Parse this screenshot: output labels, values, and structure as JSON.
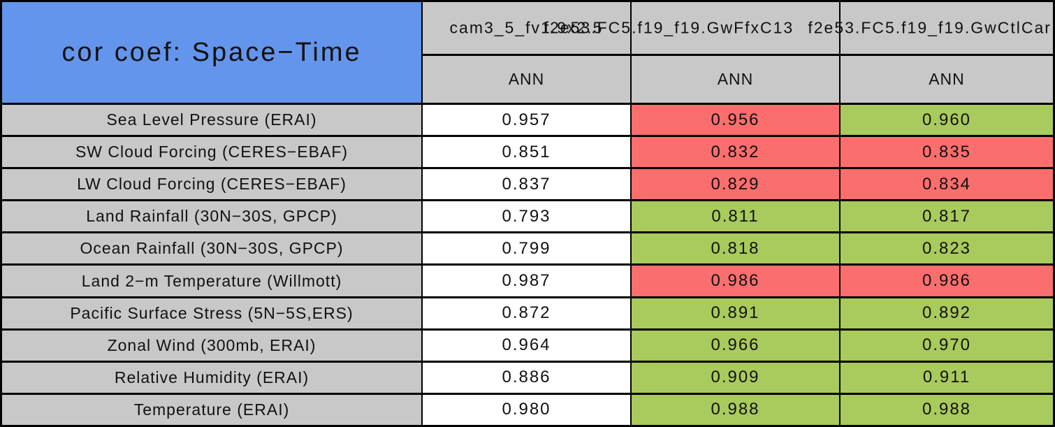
{
  "colors": {
    "title_bg": "#6495ec",
    "header_bg": "#c8c8c8",
    "red": "#fb6e6e",
    "green": "#a9ca5c",
    "white": "#ffffff",
    "border": "#000000"
  },
  "chart_data": {
    "type": "table",
    "title": "cor coef: Space−Time",
    "columns": [
      "cam3_5_fv1.9x2.5",
      "f2e53.FC5.f19_f19.GwFfxC13",
      "f2e53.FC5.f19_f19.GwCtlCar"
    ],
    "season_headers": [
      "ANN",
      "ANN",
      "ANN"
    ],
    "rows": [
      {
        "label": "Sea Level Pressure (ERAI)",
        "values": [
          "0.957",
          "0.956",
          "0.960"
        ],
        "cell_colors": [
          "white",
          "red",
          "green"
        ]
      },
      {
        "label": "SW Cloud Forcing (CERES−EBAF)",
        "values": [
          "0.851",
          "0.832",
          "0.835"
        ],
        "cell_colors": [
          "white",
          "red",
          "red"
        ]
      },
      {
        "label": "LW Cloud Forcing (CERES−EBAF)",
        "values": [
          "0.837",
          "0.829",
          "0.834"
        ],
        "cell_colors": [
          "white",
          "red",
          "red"
        ]
      },
      {
        "label": "Land Rainfall (30N−30S, GPCP)",
        "values": [
          "0.793",
          "0.811",
          "0.817"
        ],
        "cell_colors": [
          "white",
          "green",
          "green"
        ]
      },
      {
        "label": "Ocean Rainfall (30N−30S, GPCP)",
        "values": [
          "0.799",
          "0.818",
          "0.823"
        ],
        "cell_colors": [
          "white",
          "green",
          "green"
        ]
      },
      {
        "label": "Land 2−m Temperature (Willmott)",
        "values": [
          "0.987",
          "0.986",
          "0.986"
        ],
        "cell_colors": [
          "white",
          "red",
          "red"
        ]
      },
      {
        "label": "Pacific Surface Stress (5N−5S,ERS)",
        "values": [
          "0.872",
          "0.891",
          "0.892"
        ],
        "cell_colors": [
          "white",
          "green",
          "green"
        ]
      },
      {
        "label": "Zonal Wind (300mb, ERAI)",
        "values": [
          "0.964",
          "0.966",
          "0.970"
        ],
        "cell_colors": [
          "white",
          "green",
          "green"
        ]
      },
      {
        "label": "Relative Humidity (ERAI)",
        "values": [
          "0.886",
          "0.909",
          "0.911"
        ],
        "cell_colors": [
          "white",
          "green",
          "green"
        ]
      },
      {
        "label": "Temperature (ERAI)",
        "values": [
          "0.980",
          "0.988",
          "0.988"
        ],
        "cell_colors": [
          "white",
          "green",
          "green"
        ]
      }
    ]
  }
}
